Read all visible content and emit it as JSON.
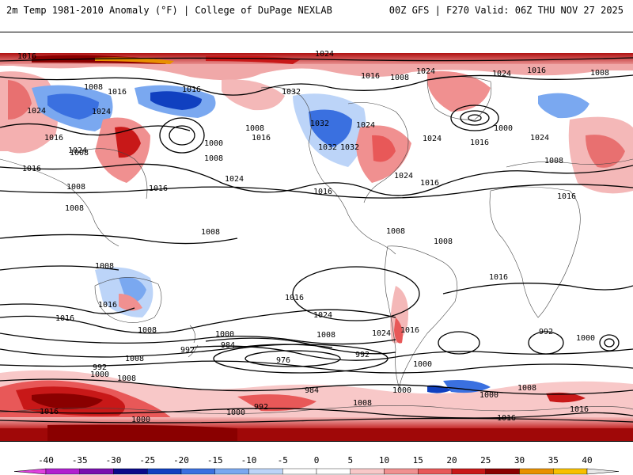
{
  "header": {
    "left": "2m Temp 1981-2010 Anomaly (°F) | College of DuPage NEXLAB",
    "right": "00Z GFS | F270 Valid: 06Z THU NOV 27 2025"
  },
  "colorbar": {
    "ticks": [
      "-40",
      "-35",
      "-30",
      "-25",
      "-20",
      "-15",
      "-10",
      "-5",
      "0",
      "5",
      "10",
      "15",
      "20",
      "25",
      "30",
      "35",
      "40"
    ],
    "colors": [
      "#e040e0",
      "#b020d0",
      "#7a10b0",
      "#0a0a8a",
      "#1040c0",
      "#3a70e0",
      "#7aa8f0",
      "#bcd4f8",
      "#ffffff",
      "#ffffff",
      "#f8c8c8",
      "#f09090",
      "#e85858",
      "#c81818",
      "#8a0000",
      "#e89000",
      "#f8c000"
    ]
  },
  "map": {
    "isobar_labels": [
      {
        "text": "1016",
        "id": "a1"
      },
      {
        "text": "1024",
        "id": "a2"
      },
      {
        "text": "1008",
        "id": "a3"
      },
      {
        "text": "1016",
        "id": "a4"
      },
      {
        "text": "1016",
        "id": "a5"
      },
      {
        "text": "1032",
        "id": "a6"
      },
      {
        "text": "1024",
        "id": "a7"
      },
      {
        "text": "1016",
        "id": "a8"
      },
      {
        "text": "1008",
        "id": "a9"
      },
      {
        "text": "1024",
        "id": "a10"
      },
      {
        "text": "1024",
        "id": "a11"
      },
      {
        "text": "1016",
        "id": "a12"
      },
      {
        "text": "1008",
        "id": "a13"
      },
      {
        "text": "1024",
        "id": "a14"
      },
      {
        "text": "1032",
        "id": "a15"
      },
      {
        "text": "1024",
        "id": "a16"
      },
      {
        "text": "1008",
        "id": "a17"
      },
      {
        "text": "1016",
        "id": "a18"
      },
      {
        "text": "1032",
        "id": "a19"
      },
      {
        "text": "1024",
        "id": "a20"
      },
      {
        "text": "1000",
        "id": "a21"
      },
      {
        "text": "1008",
        "id": "a22"
      },
      {
        "text": "1000",
        "id": "a23"
      },
      {
        "text": "1016",
        "id": "a24"
      },
      {
        "text": "1024",
        "id": "a25"
      },
      {
        "text": "1024",
        "id": "a26"
      },
      {
        "text": "1032",
        "id": "a27"
      },
      {
        "text": "1024",
        "id": "a28"
      },
      {
        "text": "1016",
        "id": "a29"
      },
      {
        "text": "1008",
        "id": "a30"
      },
      {
        "text": "1016",
        "id": "a31"
      },
      {
        "text": "1024",
        "id": "a32"
      },
      {
        "text": "1016",
        "id": "a33"
      },
      {
        "text": "1016",
        "id": "a34"
      },
      {
        "text": "1008",
        "id": "a35"
      },
      {
        "text": "1008",
        "id": "a36"
      },
      {
        "text": "1016",
        "id": "a37"
      },
      {
        "text": "1008",
        "id": "a38"
      },
      {
        "text": "1016",
        "id": "a39"
      },
      {
        "text": "1008",
        "id": "a40"
      },
      {
        "text": "1008",
        "id": "a41"
      },
      {
        "text": "1008",
        "id": "a42"
      },
      {
        "text": "1016",
        "id": "a43"
      },
      {
        "text": "1008",
        "id": "a44"
      },
      {
        "text": "1016",
        "id": "a45"
      },
      {
        "text": "1016",
        "id": "a46"
      },
      {
        "text": "1024",
        "id": "a47"
      },
      {
        "text": "1024",
        "id": "a48"
      },
      {
        "text": "1016",
        "id": "a49"
      },
      {
        "text": "1016",
        "id": "a50"
      },
      {
        "text": "1008",
        "id": "a51"
      },
      {
        "text": "1008",
        "id": "a52"
      },
      {
        "text": "1008",
        "id": "a53"
      },
      {
        "text": "992",
        "id": "a54"
      },
      {
        "text": "1000",
        "id": "a55"
      },
      {
        "text": "1000",
        "id": "a56"
      },
      {
        "text": "984",
        "id": "a57"
      },
      {
        "text": "992",
        "id": "a58"
      },
      {
        "text": "976",
        "id": "a59"
      },
      {
        "text": "992",
        "id": "a60"
      },
      {
        "text": "992",
        "id": "a61"
      },
      {
        "text": "1000",
        "id": "a62"
      },
      {
        "text": "1000",
        "id": "a63"
      },
      {
        "text": "1008",
        "id": "a64"
      },
      {
        "text": "984",
        "id": "a65"
      },
      {
        "text": "1008",
        "id": "a66"
      },
      {
        "text": "1000",
        "id": "a67"
      },
      {
        "text": "1008",
        "id": "a68"
      },
      {
        "text": "1000",
        "id": "a69"
      },
      {
        "text": "1016",
        "id": "a70"
      },
      {
        "text": "1000",
        "id": "a71"
      },
      {
        "text": "992",
        "id": "a72"
      },
      {
        "text": "1016",
        "id": "a73"
      },
      {
        "text": "1016",
        "id": "a74"
      },
      {
        "text": "1000",
        "id": "a75"
      }
    ]
  }
}
